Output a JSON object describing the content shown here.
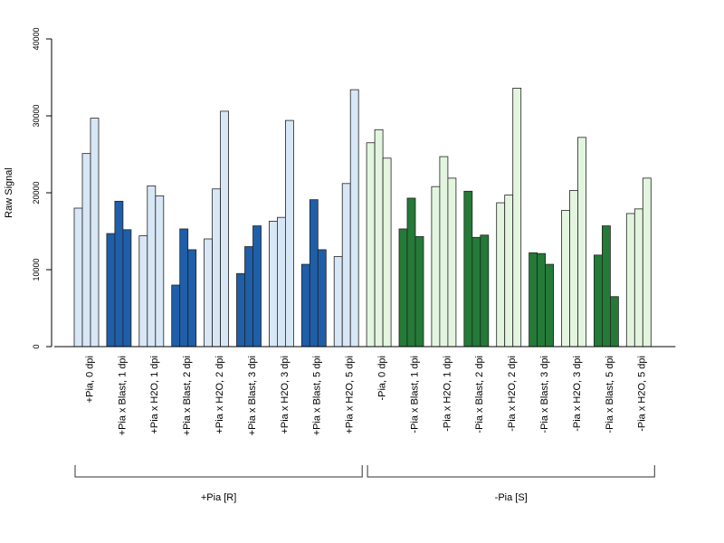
{
  "chart_data": {
    "type": "bar",
    "title": "",
    "ylabel": "Raw Signal",
    "ylim": [
      0,
      40000
    ],
    "yticks": [
      0,
      10000,
      20000,
      30000,
      40000
    ],
    "ytick_labels": [
      "0",
      "10000",
      "20000",
      "30000",
      "40000"
    ],
    "bars_per_category": 3,
    "categories": [
      "+Pia, 0 dpi",
      "+Pia x Blast, 1 dpi",
      "+Pia x H2O, 1 dpi",
      "+Pia x Blast, 2 dpi",
      "+Pia x H2O, 2 dpi",
      "+Pia x Blast, 3 dpi",
      "+Pia x H2O, 3 dpi",
      "+Pia x Blast, 5 dpi",
      "+Pia x H2O, 5 dpi",
      "-Pia, 0 dpi",
      "-Pia x Blast, 1 dpi",
      "-Pia x H2O, 1 dpi",
      "-Pia x Blast, 2 dpi",
      "-Pia x H2O, 2 dpi",
      "-Pia x Blast, 3 dpi",
      "-Pia x H2O, 3 dpi",
      "-Pia x Blast, 5 dpi",
      "-Pia x H2O, 5 dpi"
    ],
    "values": [
      [
        18000,
        25100,
        29700
      ],
      [
        14700,
        18900,
        15200
      ],
      [
        14400,
        20900,
        19600
      ],
      [
        8000,
        15300,
        12600
      ],
      [
        14000,
        20500,
        30600
      ],
      [
        9500,
        13000,
        15700
      ],
      [
        16300,
        16800,
        29400
      ],
      [
        10700,
        19100,
        12600
      ],
      [
        11700,
        21200,
        33400
      ],
      [
        26500,
        28200,
        24500
      ],
      [
        15300,
        19300,
        14300
      ],
      [
        20800,
        24700,
        21900
      ],
      [
        20200,
        14200,
        14500
      ],
      [
        18700,
        19700,
        33600
      ],
      [
        12200,
        12100,
        10700
      ],
      [
        17700,
        20300,
        27200
      ],
      [
        11900,
        15700,
        6500
      ],
      [
        17300,
        17900,
        21900
      ]
    ],
    "category_colors": [
      "#d8e7f5",
      "#1f5ea8",
      "#d8e7f5",
      "#1f5ea8",
      "#d8e7f5",
      "#1f5ea8",
      "#d8e7f5",
      "#1f5ea8",
      "#d8e7f5",
      "#e3f5df",
      "#247a37",
      "#e3f5df",
      "#247a37",
      "#e3f5df",
      "#247a37",
      "#e3f5df",
      "#247a37",
      "#e3f5df"
    ],
    "groups": [
      {
        "label": "+Pia [R]",
        "first": 0,
        "last": 8
      },
      {
        "label": "-Pia [S]",
        "first": 9,
        "last": 17
      }
    ],
    "grid": false,
    "legend": "none"
  }
}
